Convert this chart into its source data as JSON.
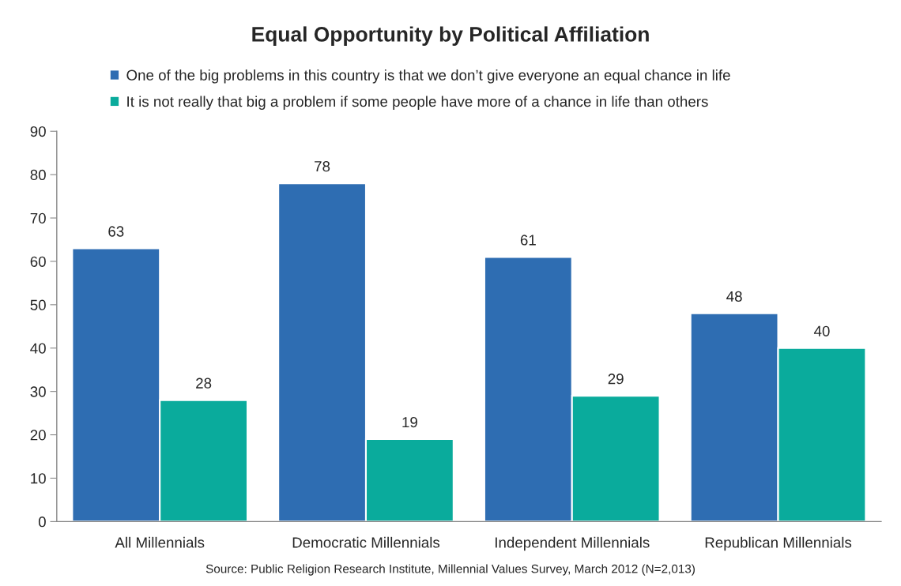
{
  "chart_data": {
    "type": "bar",
    "title": "Equal Opportunity by Political Affiliation",
    "categories": [
      "All Millennials",
      "Democratic Millennials",
      "Independent Millennials",
      "Republican Millennials"
    ],
    "series": [
      {
        "name": "One of the big problems in this country is that we don’t give everyone an equal chance in life",
        "color": "#2e6db2",
        "values": [
          63,
          78,
          61,
          48
        ]
      },
      {
        "name": "It is not really that big a problem if some people have more of a chance in life than others",
        "color": "#0aab9c",
        "values": [
          28,
          19,
          29,
          40
        ]
      }
    ],
    "ylim": [
      0,
      90
    ],
    "yticks": [
      0,
      10,
      20,
      30,
      40,
      50,
      60,
      70,
      80,
      90
    ],
    "data_labels": true,
    "grid": false,
    "legend": "top",
    "annotations": [
      "Source: Public Religion Research Institute, Millennial Values Survey, March 2012 (N=2,013)"
    ]
  }
}
